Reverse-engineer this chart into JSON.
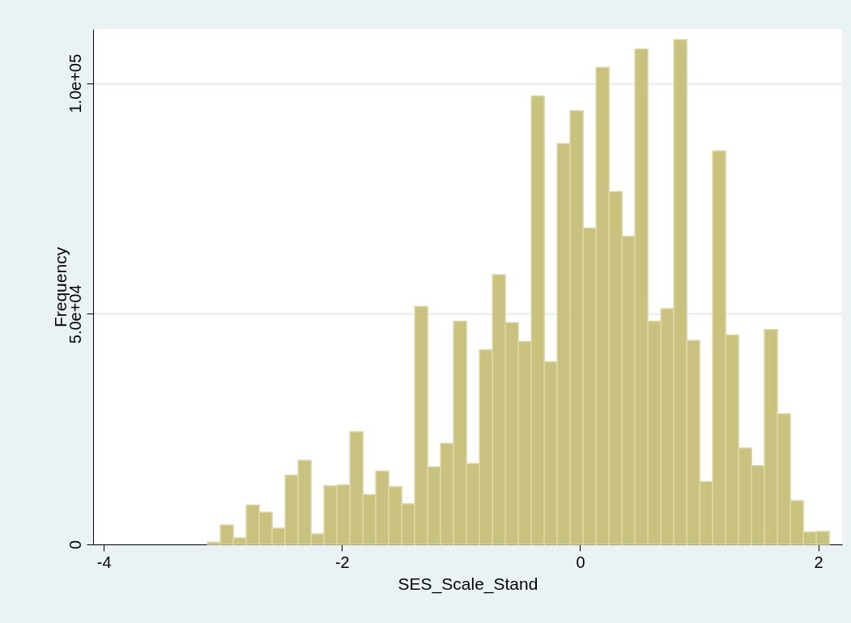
{
  "chart_data": {
    "type": "histogram",
    "xlabel": "SES_Scale_Stand",
    "ylabel": "Frequency",
    "color": "#c9c27e",
    "bins": [
      -3.13,
      -3.021,
      -2.912,
      -2.804,
      -2.695,
      -2.586,
      -2.477,
      -2.368,
      -2.26,
      -2.151,
      -2.042,
      -1.933,
      -1.824,
      -1.716,
      -1.607,
      -1.498,
      -1.389,
      -1.28,
      -1.172,
      -1.063,
      -0.954,
      -0.845,
      -0.736,
      -0.628,
      -0.519,
      -0.41,
      -0.301,
      -0.192,
      -0.084,
      0.025,
      0.134,
      0.243,
      0.352,
      0.46,
      0.569,
      0.678,
      0.787,
      0.896,
      1.004,
      1.113,
      1.222,
      1.331,
      1.44,
      1.548,
      1.657,
      1.766,
      1.875,
      1.984,
      2.092
    ],
    "values": [
      500,
      4200,
      1400,
      8500,
      7000,
      3500,
      15000,
      18200,
      2300,
      12700,
      12900,
      24400,
      10800,
      15900,
      12500,
      8800,
      51600,
      16800,
      21900,
      48400,
      17500,
      42200,
      58500,
      48100,
      44000,
      97200,
      39600,
      86900,
      94000,
      68600,
      103400,
      76500,
      66800,
      107400,
      48400,
      51100,
      109400,
      44200,
      13600,
      85300,
      45400,
      20900,
      17100,
      46600,
      28300,
      9500,
      2700,
      2800
    ],
    "xlim": [
      -4.09,
      2.2
    ],
    "xticks": [
      -4,
      -2,
      0,
      2
    ],
    "ylim": [
      0,
      111700
    ],
    "yticks": [
      0,
      {
        "value": 50000,
        "label": "5.0e+04"
      },
      {
        "value": 100000,
        "label": "1.0e+05"
      }
    ],
    "grid": "y"
  }
}
